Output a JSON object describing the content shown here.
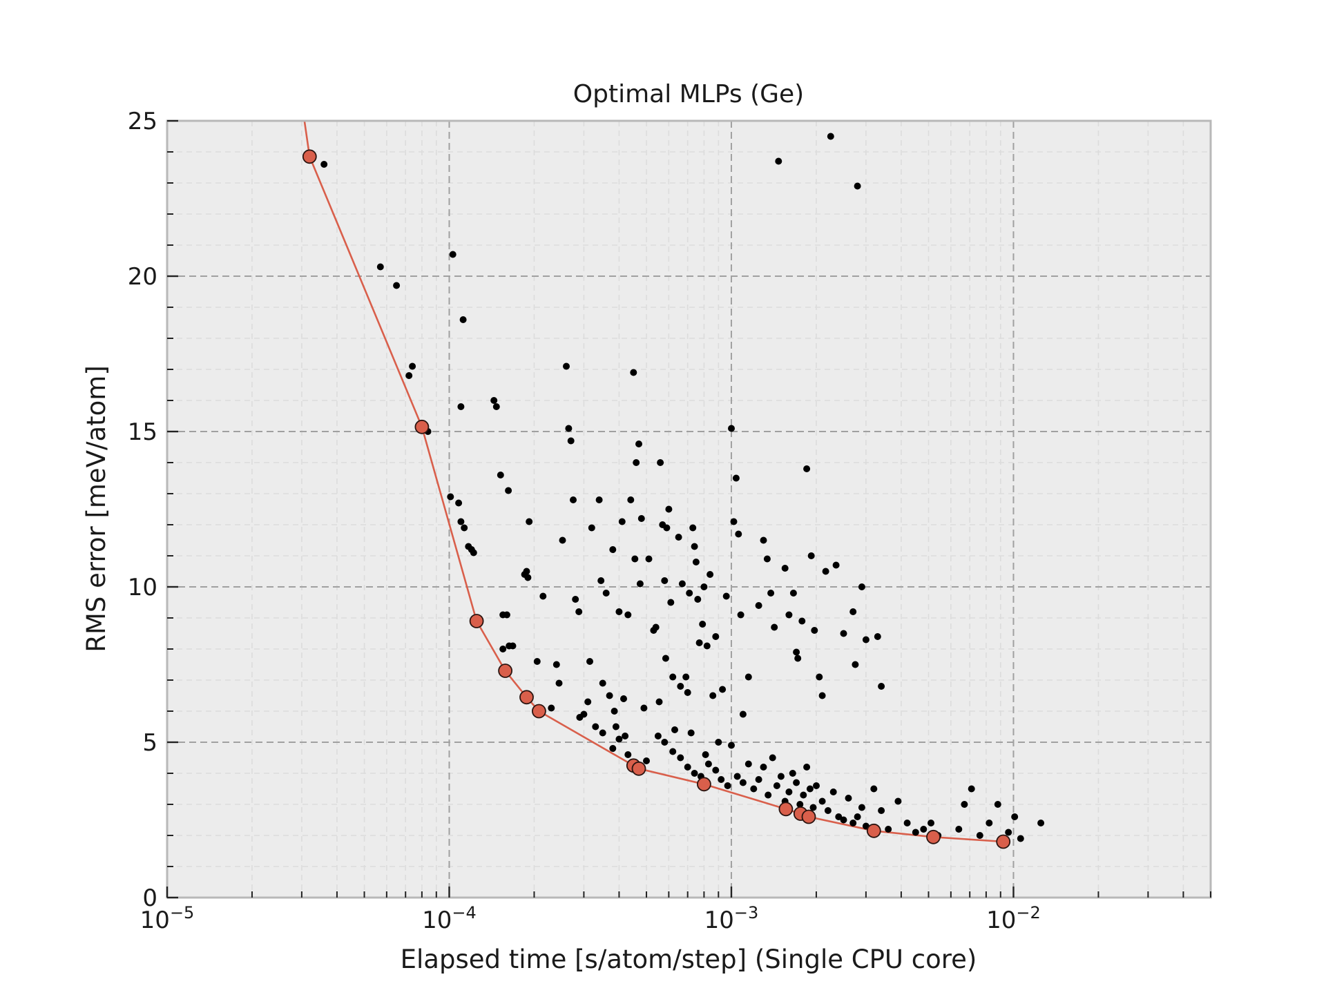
{
  "chart_data": {
    "type": "scatter",
    "title": "Optimal MLPs (Ge)",
    "xlabel": "Elapsed time [s/atom/step] (Single CPU core)",
    "ylabel": "RMS error [meV/atom]",
    "x_scale": "log",
    "xlim": [
      1e-05,
      0.05
    ],
    "ylim": [
      0,
      25
    ],
    "grid": true,
    "legend": "none",
    "x_ticks": [
      {
        "value": 1e-05,
        "base": "10",
        "exp": "−5"
      },
      {
        "value": 0.0001,
        "base": "10",
        "exp": "−4"
      },
      {
        "value": 0.001,
        "base": "10",
        "exp": "−3"
      },
      {
        "value": 0.01,
        "base": "10",
        "exp": "−2"
      }
    ],
    "y_ticks": [
      {
        "value": 0,
        "label": "0"
      },
      {
        "value": 5,
        "label": "5"
      },
      {
        "value": 10,
        "label": "10"
      },
      {
        "value": 15,
        "label": "15"
      },
      {
        "value": 20,
        "label": "20"
      },
      {
        "value": 25,
        "label": "25"
      }
    ],
    "colors": {
      "background": "#ececec",
      "pareto": "#d95f4b",
      "points": "#000000",
      "grid": "#a0a0a0"
    },
    "series": [
      {
        "style": "scatter-small-black",
        "points": [
          [
            3.6e-05,
            23.6
          ],
          [
            5.7e-05,
            20.3
          ],
          [
            6.5e-05,
            19.7
          ],
          [
            7.4e-05,
            17.1
          ],
          [
            7.2e-05,
            16.8
          ],
          [
            8.4e-05,
            15.0
          ],
          [
            0.000103,
            20.7
          ],
          [
            0.000112,
            18.6
          ],
          [
            0.00011,
            15.8
          ],
          [
            0.000101,
            12.9
          ],
          [
            0.000108,
            12.7
          ],
          [
            0.00011,
            12.1
          ],
          [
            0.000113,
            11.9
          ],
          [
            0.000117,
            11.3
          ],
          [
            0.00012,
            11.2
          ],
          [
            0.000122,
            11.1
          ],
          [
            0.000144,
            16.0
          ],
          [
            0.000147,
            15.8
          ],
          [
            0.000152,
            13.6
          ],
          [
            0.000162,
            13.1
          ],
          [
            0.000155,
            9.1
          ],
          [
            0.00016,
            9.1
          ],
          [
            0.000155,
            8.0
          ],
          [
            0.000163,
            8.1
          ],
          [
            0.000168,
            8.1
          ],
          [
            0.000185,
            10.4
          ],
          [
            0.000188,
            10.5
          ],
          [
            0.00019,
            10.3
          ],
          [
            0.000192,
            12.1
          ],
          [
            0.000205,
            7.6
          ],
          [
            0.000215,
            9.7
          ],
          [
            0.00024,
            7.5
          ],
          [
            0.00023,
            6.1
          ],
          [
            0.000245,
            6.9
          ],
          [
            0.000252,
            11.5
          ],
          [
            0.00026,
            17.1
          ],
          [
            0.000265,
            15.1
          ],
          [
            0.00027,
            14.7
          ],
          [
            0.000275,
            12.8
          ],
          [
            0.00028,
            9.6
          ],
          [
            0.000288,
            9.2
          ],
          [
            0.00029,
            5.8
          ],
          [
            0.0003,
            5.9
          ],
          [
            0.00031,
            6.3
          ],
          [
            0.000315,
            7.6
          ],
          [
            0.00032,
            11.9
          ],
          [
            0.00033,
            5.5
          ],
          [
            0.00034,
            12.8
          ],
          [
            0.000345,
            10.2
          ],
          [
            0.00035,
            6.9
          ],
          [
            0.00036,
            9.8
          ],
          [
            0.00037,
            6.5
          ],
          [
            0.00038,
            11.2
          ],
          [
            0.000385,
            6.0
          ],
          [
            0.00039,
            5.5
          ],
          [
            0.0004,
            9.2
          ],
          [
            0.00041,
            12.1
          ],
          [
            0.000415,
            6.4
          ],
          [
            0.00042,
            5.2
          ],
          [
            0.00043,
            9.1
          ],
          [
            0.00044,
            12.8
          ],
          [
            0.00045,
            16.9
          ],
          [
            0.000455,
            10.9
          ],
          [
            0.00046,
            14.0
          ],
          [
            0.00047,
            14.6
          ],
          [
            0.00048,
            12.2
          ],
          [
            0.000475,
            10.1
          ],
          [
            0.00049,
            6.1
          ],
          [
            0.00051,
            10.9
          ],
          [
            0.00053,
            8.6
          ],
          [
            0.00054,
            8.7
          ],
          [
            0.00056,
            14.0
          ],
          [
            0.000555,
            6.3
          ],
          [
            0.00057,
            12.0
          ],
          [
            0.00058,
            10.2
          ],
          [
            0.00059,
            11.9
          ],
          [
            0.000585,
            7.7
          ],
          [
            0.0006,
            12.5
          ],
          [
            0.00061,
            9.5
          ],
          [
            0.00062,
            7.1
          ],
          [
            0.00065,
            11.6
          ],
          [
            0.00066,
            6.8
          ],
          [
            0.00067,
            10.1
          ],
          [
            0.00069,
            7.1
          ],
          [
            0.0007,
            6.6
          ],
          [
            0.00071,
            9.8
          ],
          [
            0.00073,
            11.9
          ],
          [
            0.00074,
            11.3
          ],
          [
            0.00075,
            10.8
          ],
          [
            0.00076,
            9.6
          ],
          [
            0.00077,
            8.2
          ],
          [
            0.00079,
            8.8
          ],
          [
            0.0008,
            10.0
          ],
          [
            0.00082,
            8.1
          ],
          [
            0.00084,
            10.4
          ],
          [
            0.00086,
            6.5
          ],
          [
            0.00088,
            8.4
          ],
          [
            0.00093,
            6.7
          ],
          [
            0.00096,
            9.7
          ],
          [
            0.001,
            15.1
          ],
          [
            0.00102,
            12.1
          ],
          [
            0.00104,
            13.5
          ],
          [
            0.00106,
            11.7
          ],
          [
            0.00108,
            9.1
          ],
          [
            0.0011,
            5.9
          ],
          [
            0.00115,
            7.1
          ],
          [
            0.00125,
            9.4
          ],
          [
            0.0013,
            11.5
          ],
          [
            0.00134,
            10.9
          ],
          [
            0.00138,
            9.8
          ],
          [
            0.00142,
            8.7
          ],
          [
            0.00147,
            23.7
          ],
          [
            0.00155,
            10.6
          ],
          [
            0.0016,
            9.1
          ],
          [
            0.00166,
            9.8
          ],
          [
            0.0017,
            7.9
          ],
          [
            0.00172,
            7.7
          ],
          [
            0.00178,
            8.9
          ],
          [
            0.00185,
            13.8
          ],
          [
            0.00192,
            11.0
          ],
          [
            0.00197,
            8.6
          ],
          [
            0.00205,
            7.1
          ],
          [
            0.0021,
            6.5
          ],
          [
            0.00216,
            10.5
          ],
          [
            0.00225,
            24.5
          ],
          [
            0.00235,
            10.7
          ],
          [
            0.0025,
            8.5
          ],
          [
            0.0027,
            9.2
          ],
          [
            0.00275,
            7.5
          ],
          [
            0.0028,
            22.9
          ],
          [
            0.0029,
            10.0
          ],
          [
            0.003,
            8.3
          ],
          [
            0.0033,
            8.4
          ],
          [
            0.0034,
            6.8
          ],
          [
            0.00058,
            5.0
          ],
          [
            0.00062,
            4.7
          ],
          [
            0.00066,
            4.5
          ],
          [
            0.0007,
            4.2
          ],
          [
            0.00074,
            4.0
          ],
          [
            0.00078,
            3.9
          ],
          [
            0.00083,
            4.3
          ],
          [
            0.00088,
            4.1
          ],
          [
            0.00092,
            3.8
          ],
          [
            0.00097,
            3.6
          ],
          [
            0.001,
            4.9
          ],
          [
            0.00105,
            3.9
          ],
          [
            0.0011,
            3.7
          ],
          [
            0.00115,
            4.3
          ],
          [
            0.0012,
            3.5
          ],
          [
            0.00125,
            3.8
          ],
          [
            0.0013,
            4.2
          ],
          [
            0.00135,
            3.3
          ],
          [
            0.0014,
            4.5
          ],
          [
            0.00145,
            3.6
          ],
          [
            0.0015,
            3.9
          ],
          [
            0.00155,
            3.1
          ],
          [
            0.0016,
            3.4
          ],
          [
            0.00165,
            4.0
          ],
          [
            0.0017,
            3.7
          ],
          [
            0.00175,
            3.0
          ],
          [
            0.0018,
            3.3
          ],
          [
            0.00185,
            4.2
          ],
          [
            0.0019,
            3.5
          ],
          [
            0.00195,
            2.9
          ],
          [
            0.002,
            3.6
          ],
          [
            0.0021,
            3.1
          ],
          [
            0.0022,
            2.8
          ],
          [
            0.0023,
            3.4
          ],
          [
            0.0024,
            2.6
          ],
          [
            0.0025,
            2.5
          ],
          [
            0.0026,
            3.2
          ],
          [
            0.0027,
            2.4
          ],
          [
            0.0028,
            2.6
          ],
          [
            0.0029,
            2.9
          ],
          [
            0.003,
            2.3
          ],
          [
            0.0032,
            3.5
          ],
          [
            0.0034,
            2.8
          ],
          [
            0.0036,
            2.2
          ],
          [
            0.0039,
            3.1
          ],
          [
            0.0042,
            2.4
          ],
          [
            0.0045,
            2.1
          ],
          [
            0.0048,
            2.2
          ],
          [
            0.0051,
            2.4
          ],
          [
            0.0054,
            2.0
          ],
          [
            0.0064,
            2.2
          ],
          [
            0.0067,
            3.0
          ],
          [
            0.0071,
            3.5
          ],
          [
            0.0076,
            2.0
          ],
          [
            0.0082,
            2.4
          ],
          [
            0.0088,
            3.0
          ],
          [
            0.0092,
            1.9
          ],
          [
            0.0096,
            2.1
          ],
          [
            0.0101,
            2.6
          ],
          [
            0.0106,
            1.9
          ],
          [
            0.0125,
            2.4
          ],
          [
            0.00038,
            4.8
          ],
          [
            0.00043,
            4.6
          ],
          [
            0.0005,
            4.4
          ],
          [
            0.00055,
            5.2
          ],
          [
            0.00063,
            5.4
          ],
          [
            0.00072,
            5.3
          ],
          [
            0.00081,
            4.6
          ],
          [
            0.0009,
            5.0
          ],
          [
            0.00035,
            5.3
          ],
          [
            0.0004,
            5.1
          ]
        ]
      },
      {
        "style": "pareto-front",
        "points": [
          [
            3e-05,
            25.6
          ],
          [
            3.2e-05,
            23.85
          ],
          [
            8e-05,
            15.15
          ],
          [
            0.000125,
            8.9
          ],
          [
            0.000158,
            7.3
          ],
          [
            0.000188,
            6.45
          ],
          [
            0.000208,
            6.0
          ],
          [
            0.00045,
            4.25
          ],
          [
            0.00047,
            4.15
          ],
          [
            0.0008,
            3.65
          ],
          [
            0.00156,
            2.85
          ],
          [
            0.00176,
            2.7
          ],
          [
            0.00188,
            2.6
          ],
          [
            0.0032,
            2.15
          ],
          [
            0.0052,
            1.95
          ],
          [
            0.0092,
            1.8
          ]
        ]
      }
    ]
  }
}
